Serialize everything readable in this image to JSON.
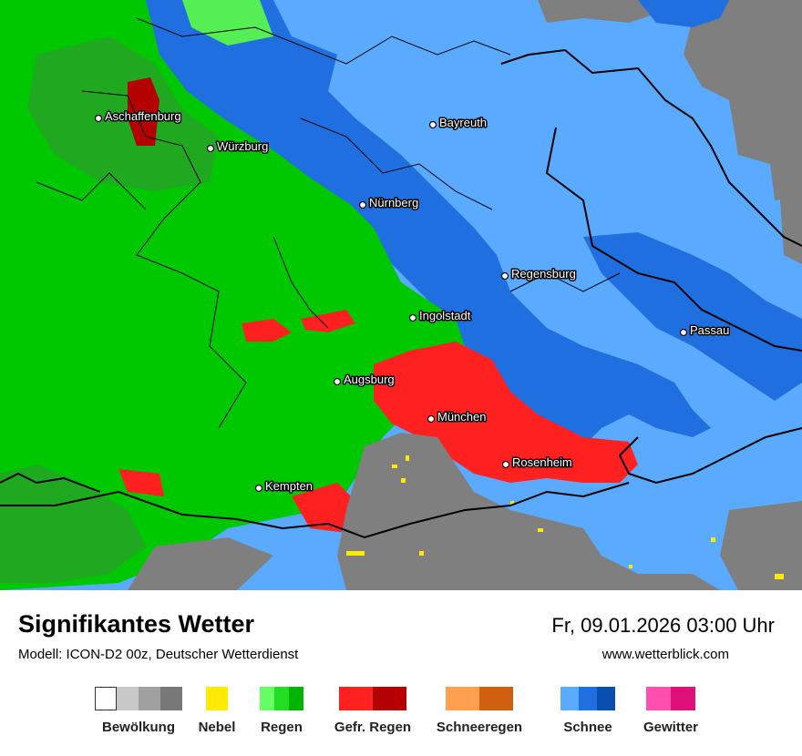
{
  "title": "Signifikantes Wetter",
  "model": "Modell: ICON-D2 00z, Deutscher Wetterdienst",
  "datetime": "Fr, 09.01.2026 03:00 Uhr",
  "website": "www.wetterblick.com",
  "cities": [
    {
      "name": "Aschaffenburg"
    },
    {
      "name": "Würzburg"
    },
    {
      "name": "Bayreuth"
    },
    {
      "name": "Nürnberg"
    },
    {
      "name": "Regensburg"
    },
    {
      "name": "Ingolstadt"
    },
    {
      "name": "Passau"
    },
    {
      "name": "Augsburg"
    },
    {
      "name": "München"
    },
    {
      "name": "Rosenheim"
    },
    {
      "name": "Kempten"
    }
  ],
  "legend": [
    {
      "label": "Bewölkung",
      "colors": [
        "#ffffff",
        "#c8c8c8",
        "#a0a0a0",
        "#787878"
      ]
    },
    {
      "label": "Nebel",
      "colors": [
        "#ffea00"
      ]
    },
    {
      "label": "Regen",
      "colors": [
        "#66ff66",
        "#22dd22",
        "#00b400"
      ]
    },
    {
      "label": "Gefr. Regen",
      "colors": [
        "#ff2020",
        "#b40000"
      ]
    },
    {
      "label": "Schneeregen",
      "colors": [
        "#ffa050",
        "#d06010"
      ]
    },
    {
      "label": "Schnee",
      "colors": [
        "#5aaaff",
        "#1f6fe0",
        "#0a4fb0"
      ]
    },
    {
      "label": "Gewitter",
      "colors": [
        "#ff50b0",
        "#e0107a"
      ]
    }
  ]
}
